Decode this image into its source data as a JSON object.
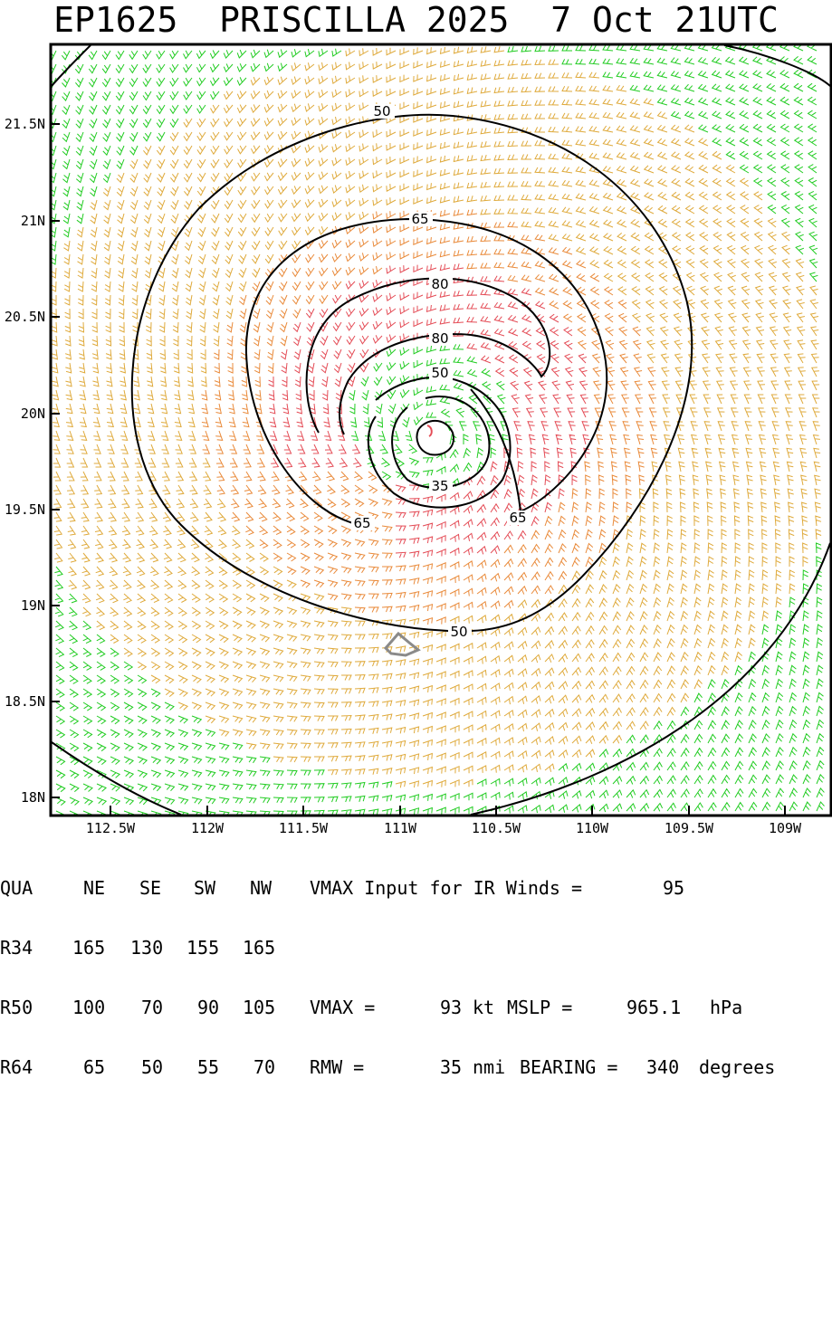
{
  "title": "EP1625  PRISCILLA 2025  7 Oct 21UTC",
  "map": {
    "lat_labels": [
      "21.5N",
      "21N",
      "20.5N",
      "20N",
      "19.5N",
      "19N",
      "18.5N",
      "18N"
    ],
    "lon_labels": [
      "112.5W",
      "112W",
      "111.5W",
      "111W",
      "110.5W",
      "110W",
      "109.5W",
      "109W"
    ],
    "contour_labels": [
      "50",
      "65",
      "80",
      "80",
      "50",
      "35",
      "65",
      "65",
      "50"
    ],
    "colors": {
      "green": "#22cc22",
      "orange": "#e98a3a",
      "gold": "#dfaa3c",
      "red": "#e44c56",
      "contour": "#000000",
      "land": "#8a8a8a"
    }
  },
  "stats": {
    "header": [
      "QUA",
      "NE",
      "SE",
      "SW",
      "NW"
    ],
    "r34": [
      "R34",
      "165",
      "130",
      "155",
      "165"
    ],
    "r50": [
      "R50",
      "100",
      "70",
      "90",
      "105"
    ],
    "r64": [
      "R64",
      "65",
      "50",
      "55",
      "70"
    ],
    "vmax_input_label": "VMAX Input for IR Winds =",
    "vmax_input_value": "95",
    "vmax_label": "VMAX =",
    "vmax_value": "93",
    "vmax_unit": "kt",
    "mslp_label": "MSLP =",
    "mslp_value": "965.1",
    "mslp_unit": "hPa",
    "rmw_label": "RMW =",
    "rmw_value": "35",
    "rmw_unit": "nmi",
    "bearing_label": "BEARING =",
    "bearing_value": "340",
    "bearing_unit": "degrees"
  }
}
